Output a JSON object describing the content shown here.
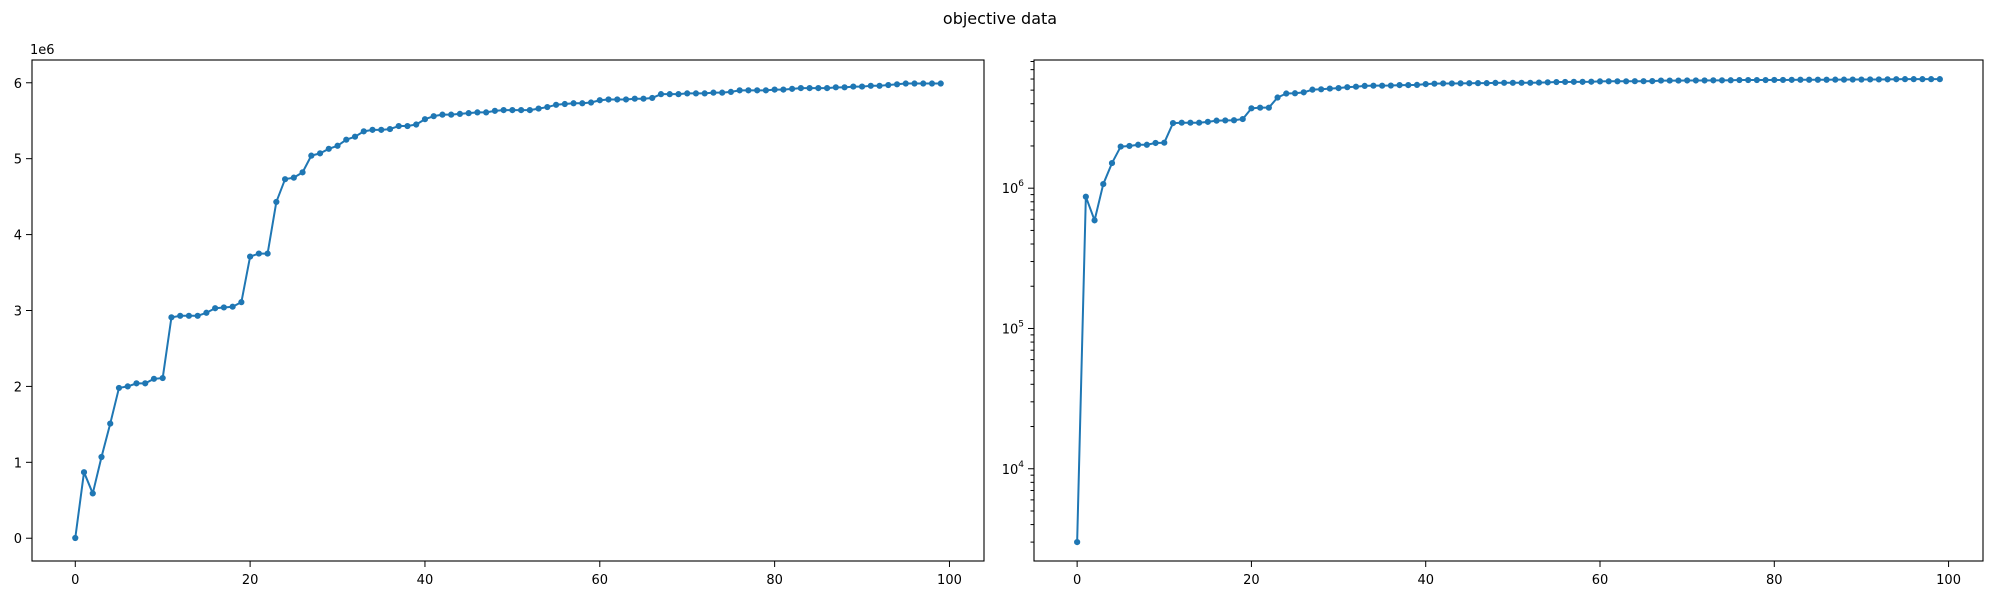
{
  "figure": {
    "title": "objective data"
  },
  "chart_data": [
    {
      "type": "line",
      "yscale": "linear",
      "title": "",
      "xlabel": "",
      "ylabel": "",
      "offset_text": "1e6",
      "xlim": [
        -4.95,
        103.95
      ],
      "ylim": [
        -300000,
        6300000
      ],
      "xticks": [
        0,
        20,
        40,
        60,
        80,
        100
      ],
      "xtick_labels": [
        "0",
        "20",
        "40",
        "60",
        "80",
        "100"
      ],
      "yticks": [
        0,
        1000000,
        2000000,
        3000000,
        4000000,
        5000000,
        6000000
      ],
      "ytick_labels": [
        "0",
        "1",
        "2",
        "3",
        "4",
        "5",
        "6"
      ],
      "grid": false,
      "series": [
        {
          "color": "#1f77b4",
          "marker": "dot",
          "x": [
            0,
            1,
            2,
            3,
            4,
            5,
            6,
            7,
            8,
            9,
            10,
            11,
            12,
            13,
            14,
            15,
            16,
            17,
            18,
            19,
            20,
            21,
            22,
            23,
            24,
            25,
            26,
            27,
            28,
            29,
            30,
            31,
            32,
            33,
            34,
            35,
            36,
            37,
            38,
            39,
            40,
            41,
            42,
            43,
            44,
            45,
            46,
            47,
            48,
            49,
            50,
            51,
            52,
            53,
            54,
            55,
            56,
            57,
            58,
            59,
            60,
            61,
            62,
            63,
            64,
            65,
            66,
            67,
            68,
            69,
            70,
            71,
            72,
            73,
            74,
            75,
            76,
            77,
            78,
            79,
            80,
            81,
            82,
            83,
            84,
            85,
            86,
            87,
            88,
            89,
            90,
            91,
            92,
            93,
            94,
            95,
            96,
            97,
            98,
            99
          ],
          "values": [
            3000,
            870000,
            590000,
            1070000,
            1510000,
            1980000,
            2000000,
            2040000,
            2040000,
            2100000,
            2110000,
            2910000,
            2930000,
            2930000,
            2930000,
            2970000,
            3030000,
            3040000,
            3050000,
            3110000,
            3710000,
            3750000,
            3750000,
            4430000,
            4730000,
            4750000,
            4820000,
            5040000,
            5070000,
            5130000,
            5170000,
            5250000,
            5290000,
            5360000,
            5380000,
            5380000,
            5390000,
            5430000,
            5430000,
            5450000,
            5520000,
            5560000,
            5580000,
            5580000,
            5590000,
            5600000,
            5610000,
            5610000,
            5630000,
            5640000,
            5640000,
            5640000,
            5640000,
            5660000,
            5680000,
            5710000,
            5720000,
            5730000,
            5730000,
            5740000,
            5770000,
            5780000,
            5780000,
            5780000,
            5790000,
            5790000,
            5800000,
            5850000,
            5850000,
            5850000,
            5860000,
            5860000,
            5860000,
            5870000,
            5870000,
            5880000,
            5900000,
            5900000,
            5900000,
            5900000,
            5910000,
            5910000,
            5920000,
            5930000,
            5930000,
            5930000,
            5930000,
            5940000,
            5940000,
            5950000,
            5950000,
            5960000,
            5960000,
            5970000,
            5980000,
            5990000,
            5990000,
            5990000,
            5990000,
            5990000
          ]
        }
      ]
    },
    {
      "type": "line",
      "yscale": "log",
      "title": "",
      "xlabel": "",
      "ylabel": "",
      "xlim": [
        -4.95,
        103.95
      ],
      "ylim": [
        2200,
        8200000
      ],
      "xticks": [
        0,
        20,
        40,
        60,
        80,
        100
      ],
      "xtick_labels": [
        "0",
        "20",
        "40",
        "60",
        "80",
        "100"
      ],
      "yticks": [
        10000,
        100000,
        1000000
      ],
      "ytick_labels": [
        {
          "base": "10",
          "exp": "4"
        },
        {
          "base": "10",
          "exp": "5"
        },
        {
          "base": "10",
          "exp": "6"
        }
      ],
      "grid": false,
      "series": [
        {
          "color": "#1f77b4",
          "marker": "dot",
          "same_values_as_series_of_chart": 0
        }
      ]
    }
  ]
}
